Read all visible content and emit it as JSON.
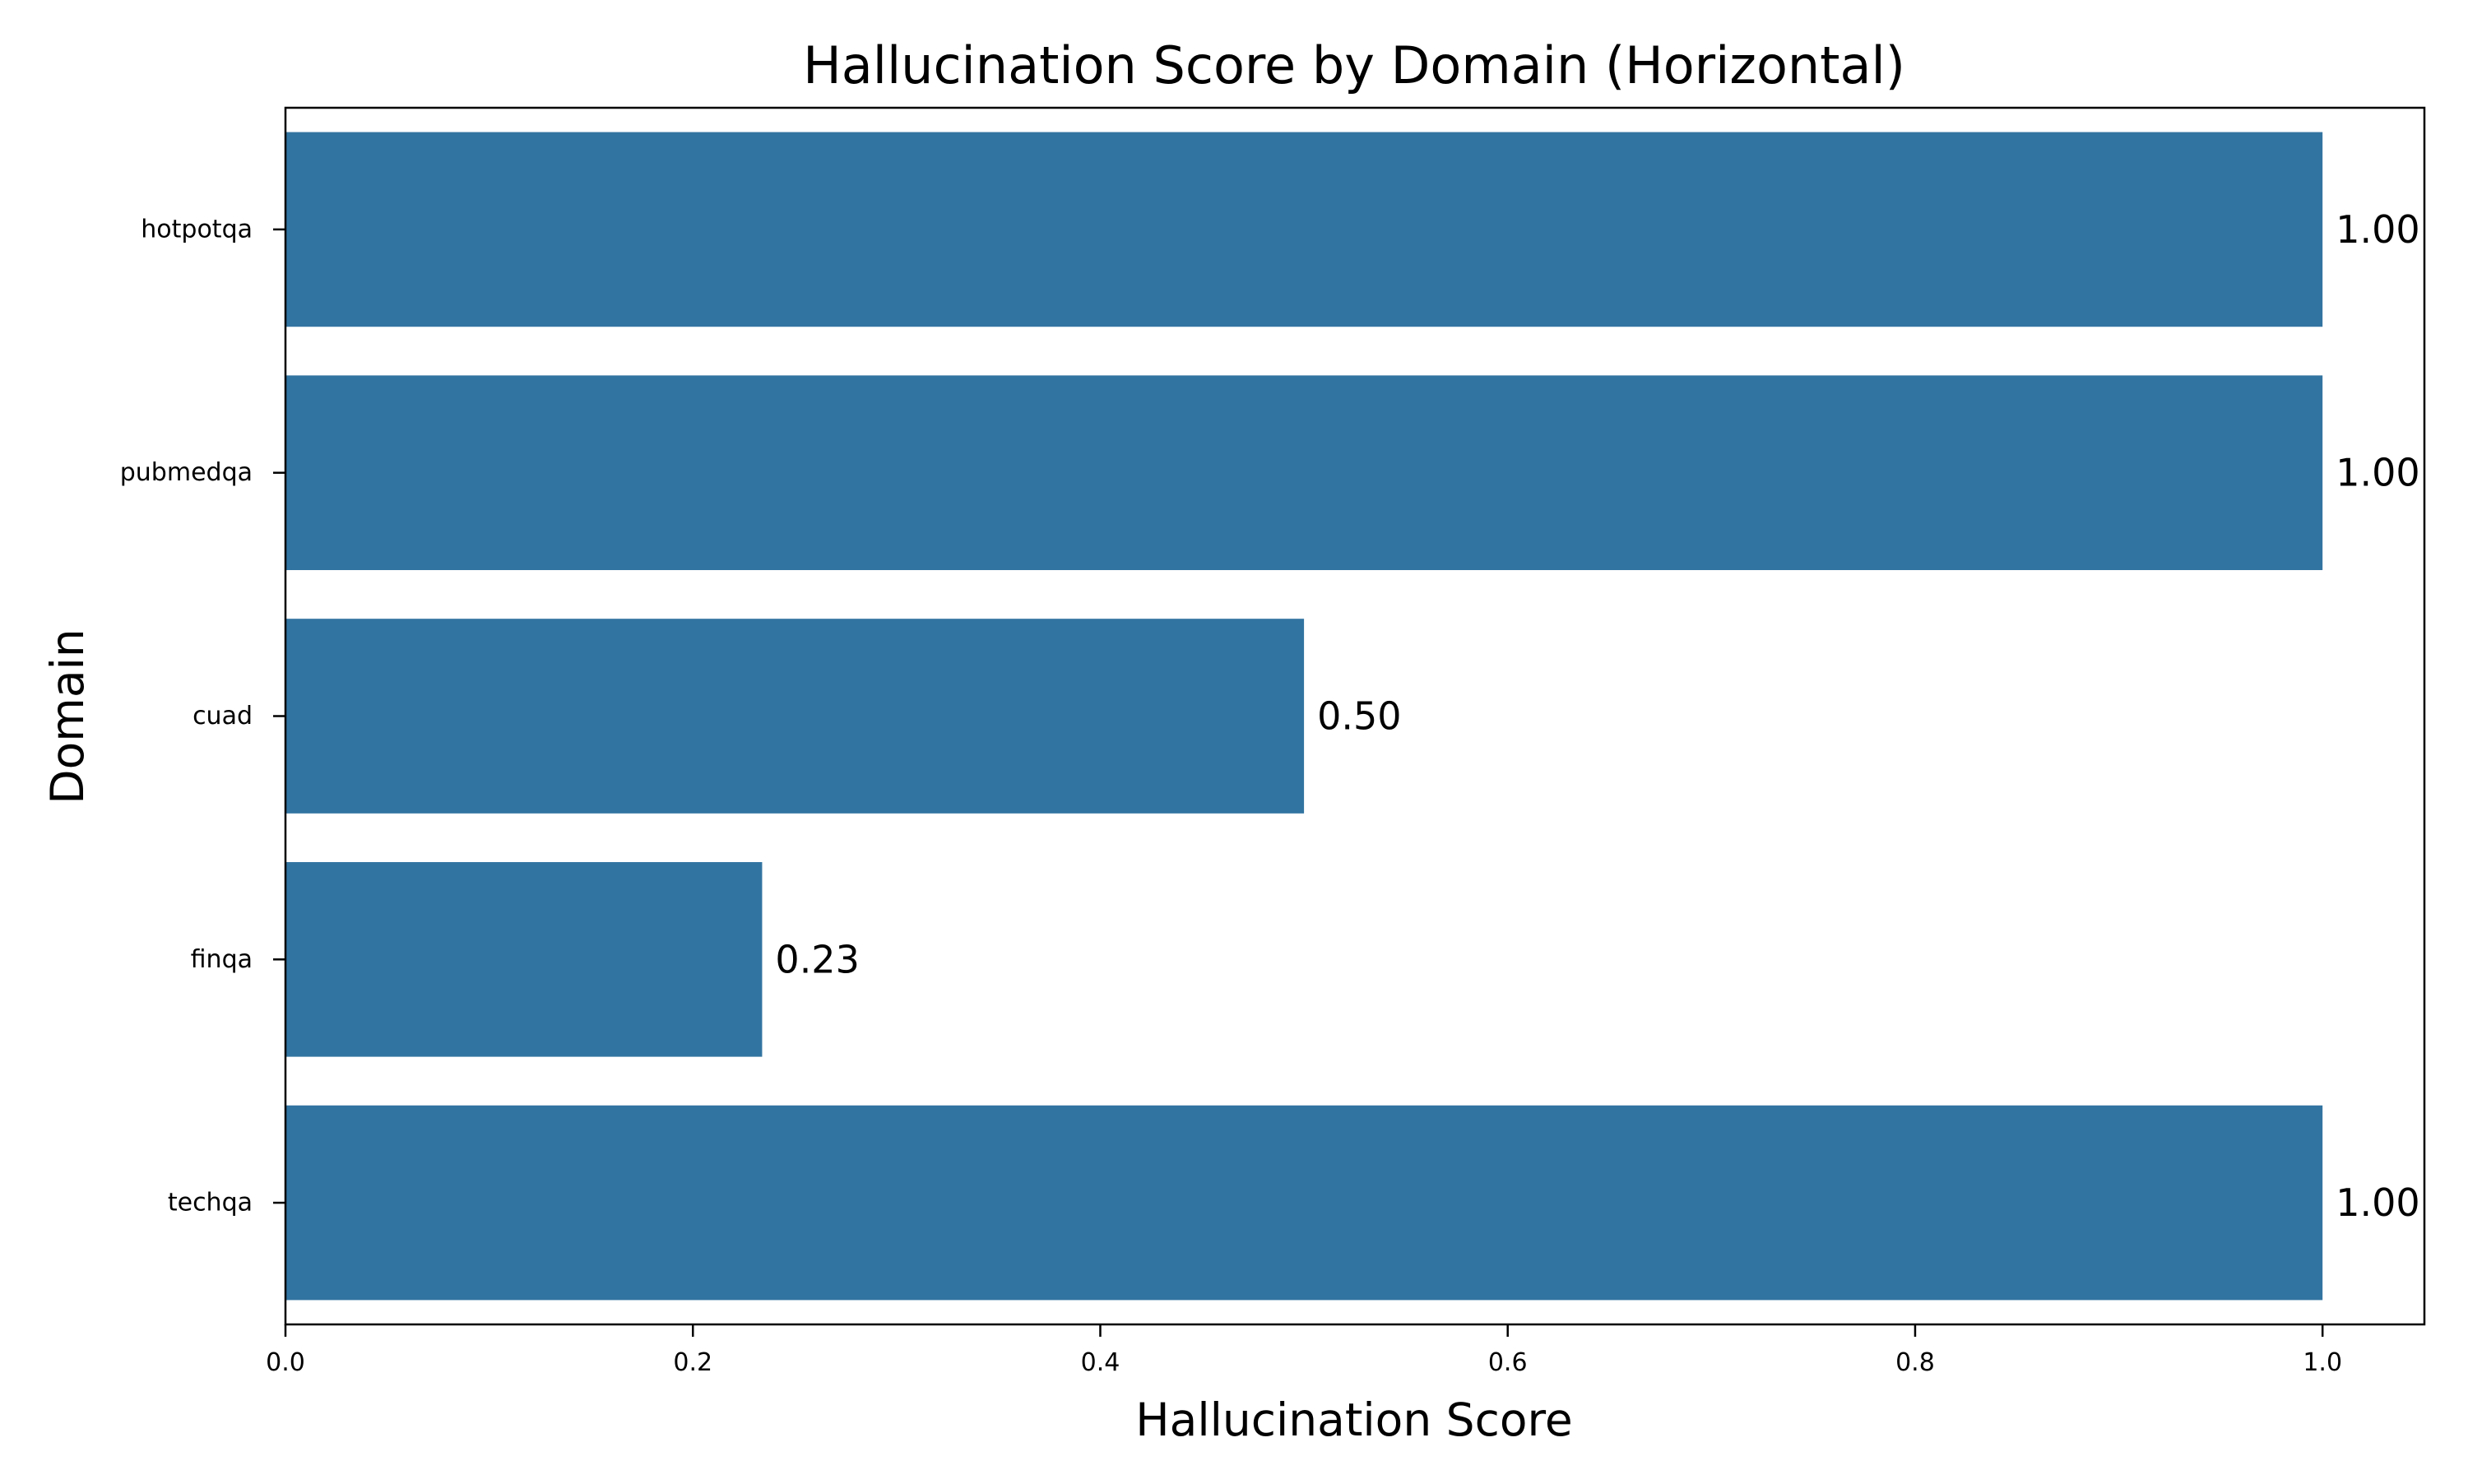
{
  "chart_data": {
    "type": "bar",
    "orientation": "horizontal",
    "title": "Hallucination Score by Domain (Horizontal)",
    "xlabel": "Hallucination Score",
    "ylabel": "Domain",
    "categories": [
      "hotpotqa",
      "pubmedqa",
      "cuad",
      "finqa",
      "techqa"
    ],
    "values": [
      1.0,
      1.0,
      0.5,
      0.234,
      1.0
    ],
    "value_labels": [
      "1.00",
      "1.00",
      "0.50",
      "0.23",
      "1.00"
    ],
    "xlim": [
      0,
      1.05
    ],
    "xticks": [
      0.0,
      0.2,
      0.4,
      0.6,
      0.8,
      1.0
    ],
    "xtick_labels": [
      "0.0",
      "0.2",
      "0.4",
      "0.6",
      "0.8",
      "1.0"
    ],
    "bar_color": "#3274a1",
    "grid": false,
    "legend": "none"
  }
}
